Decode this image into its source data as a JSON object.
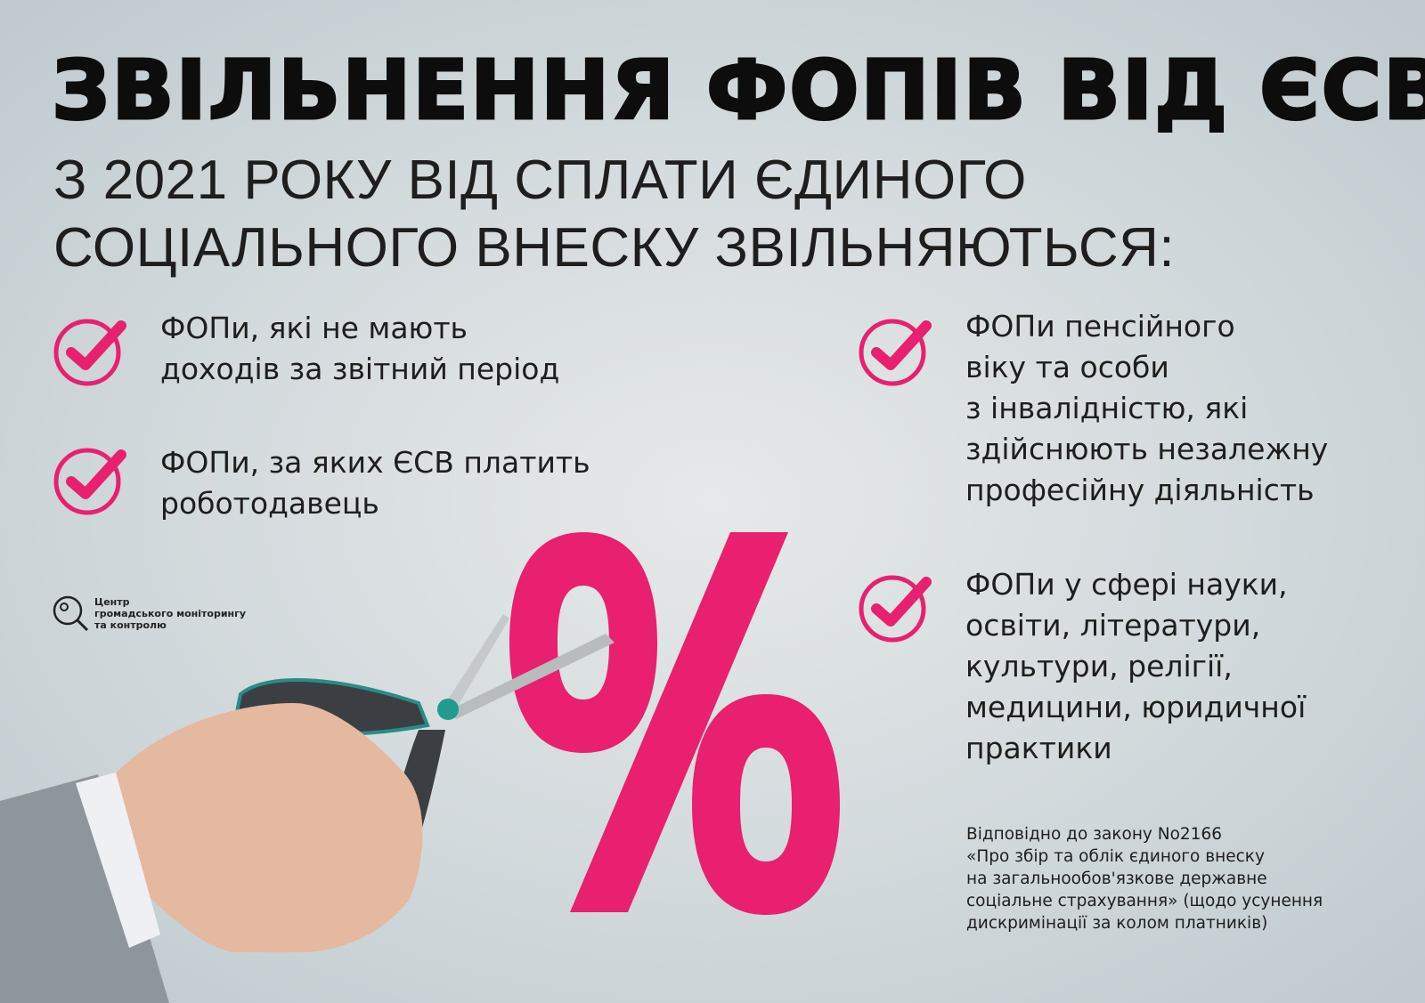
{
  "title": "ЗВІЛЬНЕННЯ ФОПІВ ВІД ЄСВ",
  "subtitle": "З 2021 РОКУ ВІД СПЛАТИ ЄДИНОГО\nСОЦІАЛЬНОГО ВНЕСКУ ЗВІЛЬНЯЮТЬСЯ:",
  "accent_color": "#e8206f",
  "items": [
    {
      "icon": "check-circle-icon",
      "text": "ФОПи, які не мають\nдоходів за звітний період"
    },
    {
      "icon": "check-circle-icon",
      "text": "ФОПи, за яких ЄСВ платить\nроботодавець"
    },
    {
      "icon": "check-circle-icon",
      "text": "ФОПи пенсійного\nвіку та особи\nз інвалідністю, які\nздійснюють незалежну\nпрофесійну діяльність"
    },
    {
      "icon": "check-circle-icon",
      "text": "ФОПи у сфері науки,\nосвіти, літератури,\nкультури, релігії,\nмедицини, юридичної\nпрактики"
    }
  ],
  "logo": {
    "icon": "magnifier-icon",
    "text": "Центр\nгромадського моніторингу\nта контролю"
  },
  "note": "Відповідно до закону No2166\n«Про збір та облік єдиного внеску\nна загальнообов'язкове державне\nсоціальне страхування» (щодо усунення\nдискримінації за колом платників)"
}
